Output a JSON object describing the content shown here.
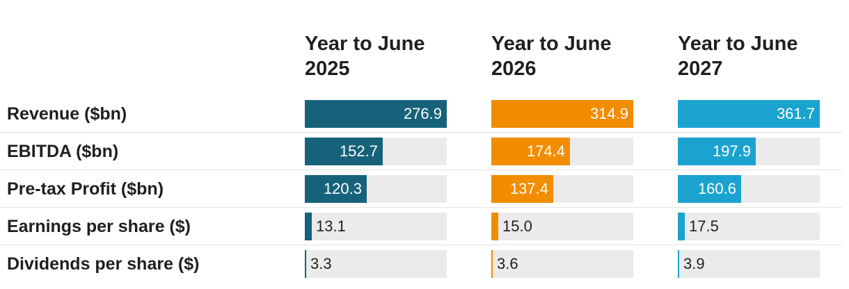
{
  "chart_data": {
    "type": "table",
    "columns": [
      {
        "label": "Year to June 2025",
        "line1": "Year to June",
        "line2": "2025",
        "color": "#17627b"
      },
      {
        "label": "Year to June 2026",
        "line1": "Year to June",
        "line2": "2026",
        "color": "#f28c00"
      },
      {
        "label": "Year to June 2027",
        "line1": "Year to June",
        "line2": "2027",
        "color": "#1ba3cf"
      }
    ],
    "rows": [
      {
        "label": "Revenue ($bn)",
        "values": [
          "276.9",
          "314.9",
          "361.7"
        ],
        "max": 276.9
      },
      {
        "label": "EBITDA ($bn)",
        "values": [
          "152.7",
          "174.4",
          "197.9"
        ],
        "max": 276.9
      },
      {
        "label": "Pre-tax Profit ($bn)",
        "values": [
          "120.3",
          "137.4",
          "160.6"
        ],
        "max": 276.9
      },
      {
        "label": "Earnings per share ($)",
        "values": [
          "13.1",
          "15.0",
          "17.5"
        ],
        "max": 276.9
      },
      {
        "label": "Dividends per share ($)",
        "values": [
          "3.3",
          "3.6",
          "3.9"
        ],
        "max": 276.9
      }
    ],
    "scale": "shared bar scale per column, Revenue bar fills cell"
  }
}
